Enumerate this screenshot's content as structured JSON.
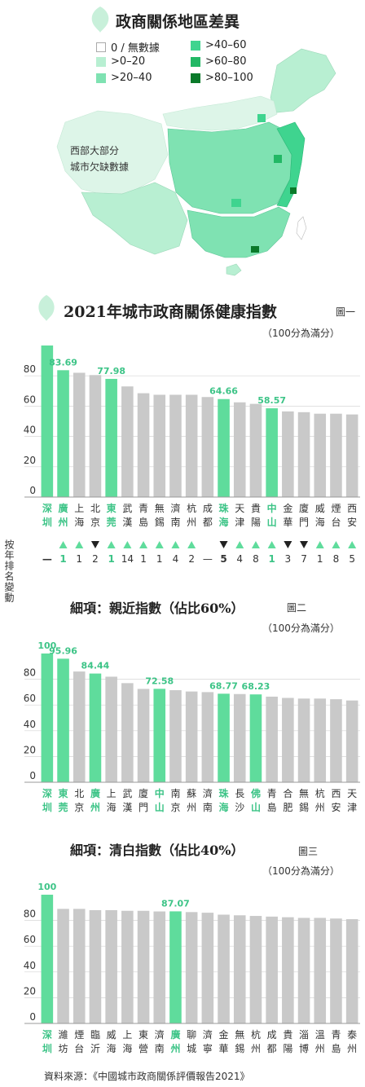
{
  "map": {
    "title": "政商關係地區差異",
    "note_line1": "西部大部分",
    "note_line2": "城市欠缺數據",
    "legend": [
      {
        "label": "0 / 無數據",
        "color": "#ffffff"
      },
      {
        "label": ">40–60",
        "color": "#3fd48f"
      },
      {
        "label": ">0–20",
        "color": "#b8efd2"
      },
      {
        "label": ">60–80",
        "color": "#22b865"
      },
      {
        "label": ">20–40",
        "color": "#7fe2b2"
      },
      {
        "label": ">80–100",
        "color": "#0a7a2a"
      }
    ]
  },
  "colors": {
    "highlight": "#5fdc9c",
    "gray": "#c9c9c9",
    "pale": "#ddf5e8",
    "up": "#5fdc9c",
    "down": "#222222"
  },
  "chart_data": [
    {
      "type": "bar",
      "title": "2021年城市政商關係健康指數",
      "fig_label": "圖一",
      "subtitle": "（100分為滿分）",
      "ylim": [
        0,
        100
      ],
      "yticks": [
        0,
        20,
        40,
        60,
        80
      ],
      "categories": [
        "深圳",
        "廣州",
        "上海",
        "北京",
        "東莞",
        "武漢",
        "青島",
        "無錫",
        "濟南",
        "杭州",
        "成都",
        "珠海",
        "天津",
        "貴陽",
        "中山",
        "金華",
        "廈門",
        "威海",
        "煙台",
        "西安"
      ],
      "values": [
        100,
        83.69,
        82,
        80.5,
        77.98,
        73,
        68.5,
        67.5,
        67.5,
        67.5,
        66,
        64.66,
        62.5,
        61.5,
        58.57,
        56.5,
        56,
        55,
        55,
        54.5
      ],
      "highlight": [
        true,
        true,
        false,
        false,
        true,
        false,
        false,
        false,
        false,
        false,
        false,
        true,
        false,
        false,
        true,
        false,
        false,
        false,
        false,
        false
      ],
      "labels": [
        "100",
        "83.69",
        "",
        "",
        "77.98",
        "",
        "",
        "",
        "",
        "",
        "",
        "64.66",
        "",
        "",
        "58.57",
        "",
        "",
        "",
        "",
        ""
      ],
      "rank_change_label": "按年排名變動",
      "rank_change": [
        {
          "dir": "none",
          "text": "—"
        },
        {
          "dir": "up",
          "text": "1"
        },
        {
          "dir": "up",
          "text": "1"
        },
        {
          "dir": "down",
          "text": "2"
        },
        {
          "dir": "up",
          "text": "1"
        },
        {
          "dir": "up",
          "text": "14"
        },
        {
          "dir": "up",
          "text": "1"
        },
        {
          "dir": "up",
          "text": "1"
        },
        {
          "dir": "up",
          "text": "4"
        },
        {
          "dir": "up",
          "text": "2"
        },
        {
          "dir": "none",
          "text": "—"
        },
        {
          "dir": "down",
          "text": "5"
        },
        {
          "dir": "up",
          "text": "4"
        },
        {
          "dir": "up",
          "text": "8"
        },
        {
          "dir": "up",
          "text": "1"
        },
        {
          "dir": "down",
          "text": "3"
        },
        {
          "dir": "down",
          "text": "7"
        },
        {
          "dir": "up",
          "text": "1"
        },
        {
          "dir": "up",
          "text": "8"
        },
        {
          "dir": "up",
          "text": "5"
        }
      ]
    },
    {
      "type": "bar",
      "title": "細項：親近指數（佔比60%）",
      "fig_label": "圖二",
      "subtitle": "（100分為滿分）",
      "ylim": [
        0,
        100
      ],
      "yticks": [
        0,
        20,
        40,
        60,
        80
      ],
      "categories": [
        "深圳",
        "東莞",
        "北京",
        "廣州",
        "上海",
        "武漢",
        "廈門",
        "中山",
        "南京",
        "蘇州",
        "濟南",
        "珠海",
        "長沙",
        "佛山",
        "青島",
        "合肥",
        "無錫",
        "杭州",
        "西安",
        "天津"
      ],
      "values": [
        100,
        95.96,
        86,
        84.44,
        82,
        77,
        72.5,
        72.58,
        71.5,
        70.5,
        70,
        68.77,
        68.5,
        68.23,
        66.5,
        65.5,
        65,
        65,
        64.5,
        63.5
      ],
      "highlight": [
        true,
        true,
        false,
        true,
        false,
        false,
        false,
        true,
        false,
        false,
        false,
        true,
        false,
        true,
        false,
        false,
        false,
        false,
        false,
        false
      ],
      "labels": [
        "100",
        "95.96",
        "",
        "84.44",
        "",
        "",
        "",
        "72.58",
        "",
        "",
        "",
        "68.77",
        "",
        "68.23",
        "",
        "",
        "",
        "",
        "",
        ""
      ]
    },
    {
      "type": "bar",
      "title": "細項：清白指數（佔比40%）",
      "fig_label": "圖三",
      "subtitle": "（100分為滿分）",
      "ylim": [
        0,
        100
      ],
      "yticks": [
        0,
        20,
        40,
        60,
        80
      ],
      "categories": [
        "深圳",
        "濰坊",
        "煙台",
        "臨沂",
        "威海",
        "上海",
        "東營",
        "濟南",
        "廣州",
        "聊城",
        "濟寧",
        "金華",
        "無錫",
        "杭州",
        "成都",
        "貴陽",
        "淄博",
        "溫州",
        "青島",
        "泰州"
      ],
      "values": [
        100,
        89,
        89,
        88,
        88,
        87.5,
        87.5,
        87,
        87.07,
        86.5,
        86,
        84.5,
        84,
        83.5,
        83,
        82.5,
        82,
        82,
        81.5,
        81
      ],
      "highlight": [
        true,
        false,
        false,
        false,
        false,
        false,
        false,
        false,
        true,
        false,
        false,
        false,
        false,
        false,
        false,
        false,
        false,
        false,
        false,
        false
      ],
      "labels": [
        "100",
        "",
        "",
        "",
        "",
        "",
        "",
        "",
        "87.07",
        "",
        "",
        "",
        "",
        "",
        "",
        "",
        "",
        "",
        "",
        ""
      ]
    }
  ],
  "footer": {
    "source": "資料來源：《中國城市政商關係評價報告2021》"
  }
}
